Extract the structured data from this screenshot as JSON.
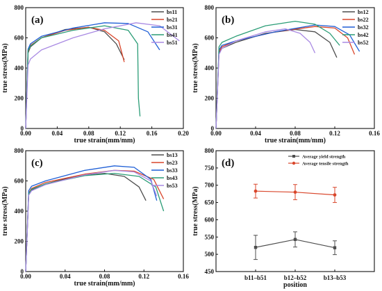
{
  "chart_data": [
    {
      "panel": "(a)",
      "type": "line",
      "xlabel": "true strain(mm/mm)",
      "ylabel": "true stress(MPa)",
      "xlim": [
        0,
        0.2
      ],
      "ylim": [
        0,
        800
      ],
      "xticks": [
        "0.00",
        "0.04",
        "0.08",
        "0.12",
        "0.16",
        "0.20"
      ],
      "yticks": [
        "0",
        "200",
        "400",
        "600",
        "800"
      ],
      "legend": "top-right",
      "series": [
        {
          "name": "bs11",
          "color": "#4d4d4d",
          "x": [
            0,
            0.003,
            0.006,
            0.02,
            0.05,
            0.08,
            0.1,
            0.115,
            0.125
          ],
          "y": [
            0,
            500,
            540,
            600,
            655,
            670,
            640,
            560,
            455
          ]
        },
        {
          "name": "bs21",
          "color": "#d9462b",
          "x": [
            0,
            0.003,
            0.006,
            0.02,
            0.05,
            0.08,
            0.1,
            0.118,
            0.125
          ],
          "y": [
            0,
            510,
            550,
            600,
            650,
            670,
            650,
            580,
            440
          ]
        },
        {
          "name": "bs31",
          "color": "#1f5fd6",
          "x": [
            0,
            0.003,
            0.006,
            0.02,
            0.06,
            0.1,
            0.13,
            0.155,
            0.17
          ],
          "y": [
            0,
            525,
            560,
            610,
            665,
            700,
            695,
            640,
            520
          ]
        },
        {
          "name": "bs41",
          "color": "#2a9c76",
          "x": [
            0,
            0.003,
            0.006,
            0.02,
            0.06,
            0.1,
            0.13,
            0.142,
            0.143,
            0.145
          ],
          "y": [
            0,
            515,
            545,
            600,
            650,
            680,
            650,
            560,
            200,
            80
          ]
        },
        {
          "name": "bs51",
          "color": "#a98ae3",
          "x": [
            0,
            0.003,
            0.006,
            0.02,
            0.06,
            0.1,
            0.14,
            0.17,
            0.195
          ],
          "y": [
            0,
            420,
            460,
            520,
            600,
            660,
            700,
            680,
            580
          ]
        }
      ]
    },
    {
      "panel": "(b)",
      "type": "line",
      "xlabel": "true strain(mm/mm)",
      "ylabel": "true stress(MPa)",
      "xlim": [
        0,
        0.16
      ],
      "ylim": [
        0,
        800
      ],
      "xticks": [
        "0.00",
        "0.04",
        "0.08",
        "0.12",
        "0.16"
      ],
      "yticks": [
        "0",
        "200",
        "400",
        "600",
        "800"
      ],
      "legend": "top-right",
      "series": [
        {
          "name": "bs12",
          "color": "#4d4d4d",
          "x": [
            0,
            0.003,
            0.006,
            0.02,
            0.05,
            0.08,
            0.1,
            0.115,
            0.122
          ],
          "y": [
            0,
            500,
            530,
            570,
            630,
            655,
            640,
            570,
            470
          ]
        },
        {
          "name": "bs22",
          "color": "#d9462b",
          "x": [
            0,
            0.003,
            0.006,
            0.02,
            0.06,
            0.1,
            0.12,
            0.133,
            0.14
          ],
          "y": [
            0,
            510,
            540,
            580,
            640,
            675,
            665,
            600,
            490
          ]
        },
        {
          "name": "bs32",
          "color": "#1f5fd6",
          "x": [
            0,
            0.003,
            0.006,
            0.02,
            0.06,
            0.1,
            0.12,
            0.135,
            0.145
          ],
          "y": [
            0,
            520,
            550,
            580,
            640,
            685,
            675,
            620,
            510
          ]
        },
        {
          "name": "bs42",
          "color": "#2a9c76",
          "x": [
            0,
            0.003,
            0.006,
            0.02,
            0.05,
            0.08,
            0.1,
            0.115,
            0.125
          ],
          "y": [
            0,
            540,
            570,
            610,
            680,
            710,
            690,
            630,
            550
          ]
        },
        {
          "name": "bs52",
          "color": "#a98ae3",
          "x": [
            0,
            0.003,
            0.006,
            0.02,
            0.05,
            0.07,
            0.085,
            0.095,
            0.1
          ],
          "y": [
            0,
            490,
            530,
            580,
            640,
            660,
            630,
            570,
            500
          ]
        }
      ]
    },
    {
      "panel": "(c)",
      "type": "line",
      "xlabel": "true strain(mm/mm)",
      "ylabel": "true stress(MPa)",
      "xlim": [
        0,
        0.16
      ],
      "ylim": [
        0,
        800
      ],
      "xticks": [
        "0.00",
        "0.04",
        "0.08",
        "0.12",
        "0.16"
      ],
      "yticks": [
        "0",
        "200",
        "400",
        "600",
        "800"
      ],
      "legend": "top-right",
      "series": [
        {
          "name": "bs13",
          "color": "#4d4d4d",
          "x": [
            0,
            0.003,
            0.006,
            0.02,
            0.05,
            0.08,
            0.1,
            0.115,
            0.122
          ],
          "y": [
            0,
            510,
            540,
            580,
            630,
            650,
            630,
            560,
            470
          ]
        },
        {
          "name": "bs23",
          "color": "#d9462b",
          "x": [
            0,
            0.003,
            0.006,
            0.02,
            0.06,
            0.09,
            0.11,
            0.13,
            0.14
          ],
          "y": [
            0,
            520,
            550,
            590,
            645,
            670,
            665,
            610,
            480
          ]
        },
        {
          "name": "bs33",
          "color": "#1f5fd6",
          "x": [
            0,
            0.003,
            0.006,
            0.02,
            0.06,
            0.09,
            0.11,
            0.127,
            0.133
          ],
          "y": [
            0,
            535,
            565,
            600,
            670,
            700,
            690,
            610,
            470
          ]
        },
        {
          "name": "bs43",
          "color": "#2a9c76",
          "x": [
            0,
            0.003,
            0.006,
            0.02,
            0.06,
            0.09,
            0.115,
            0.132,
            0.14
          ],
          "y": [
            0,
            515,
            545,
            580,
            635,
            650,
            630,
            560,
            400
          ]
        },
        {
          "name": "bs53",
          "color": "#a98ae3",
          "x": [
            0,
            0.003,
            0.006,
            0.02,
            0.06,
            0.09,
            0.11,
            0.127,
            0.133
          ],
          "y": [
            0,
            505,
            535,
            575,
            640,
            670,
            660,
            600,
            500
          ]
        }
      ]
    },
    {
      "panel": "(d)",
      "type": "line",
      "xlabel": "position",
      "ylabel": "true stress(MPa)",
      "categories": [
        "b11–b51",
        "b12–b52",
        "b13–b53"
      ],
      "ylim": [
        450,
        800
      ],
      "yticks": [
        "450",
        "500",
        "550",
        "600",
        "650",
        "700",
        "750",
        "800"
      ],
      "legend": "top-right",
      "series": [
        {
          "name": "Average yield strength",
          "color": "#4d4d4d",
          "marker": "square",
          "values": [
            520,
            543,
            519
          ],
          "errors": [
            35,
            22,
            20
          ]
        },
        {
          "name": "Average tensile strength",
          "color": "#d9462b",
          "marker": "circle",
          "values": [
            683,
            680,
            672
          ],
          "errors": [
            20,
            22,
            22
          ]
        }
      ]
    }
  ]
}
